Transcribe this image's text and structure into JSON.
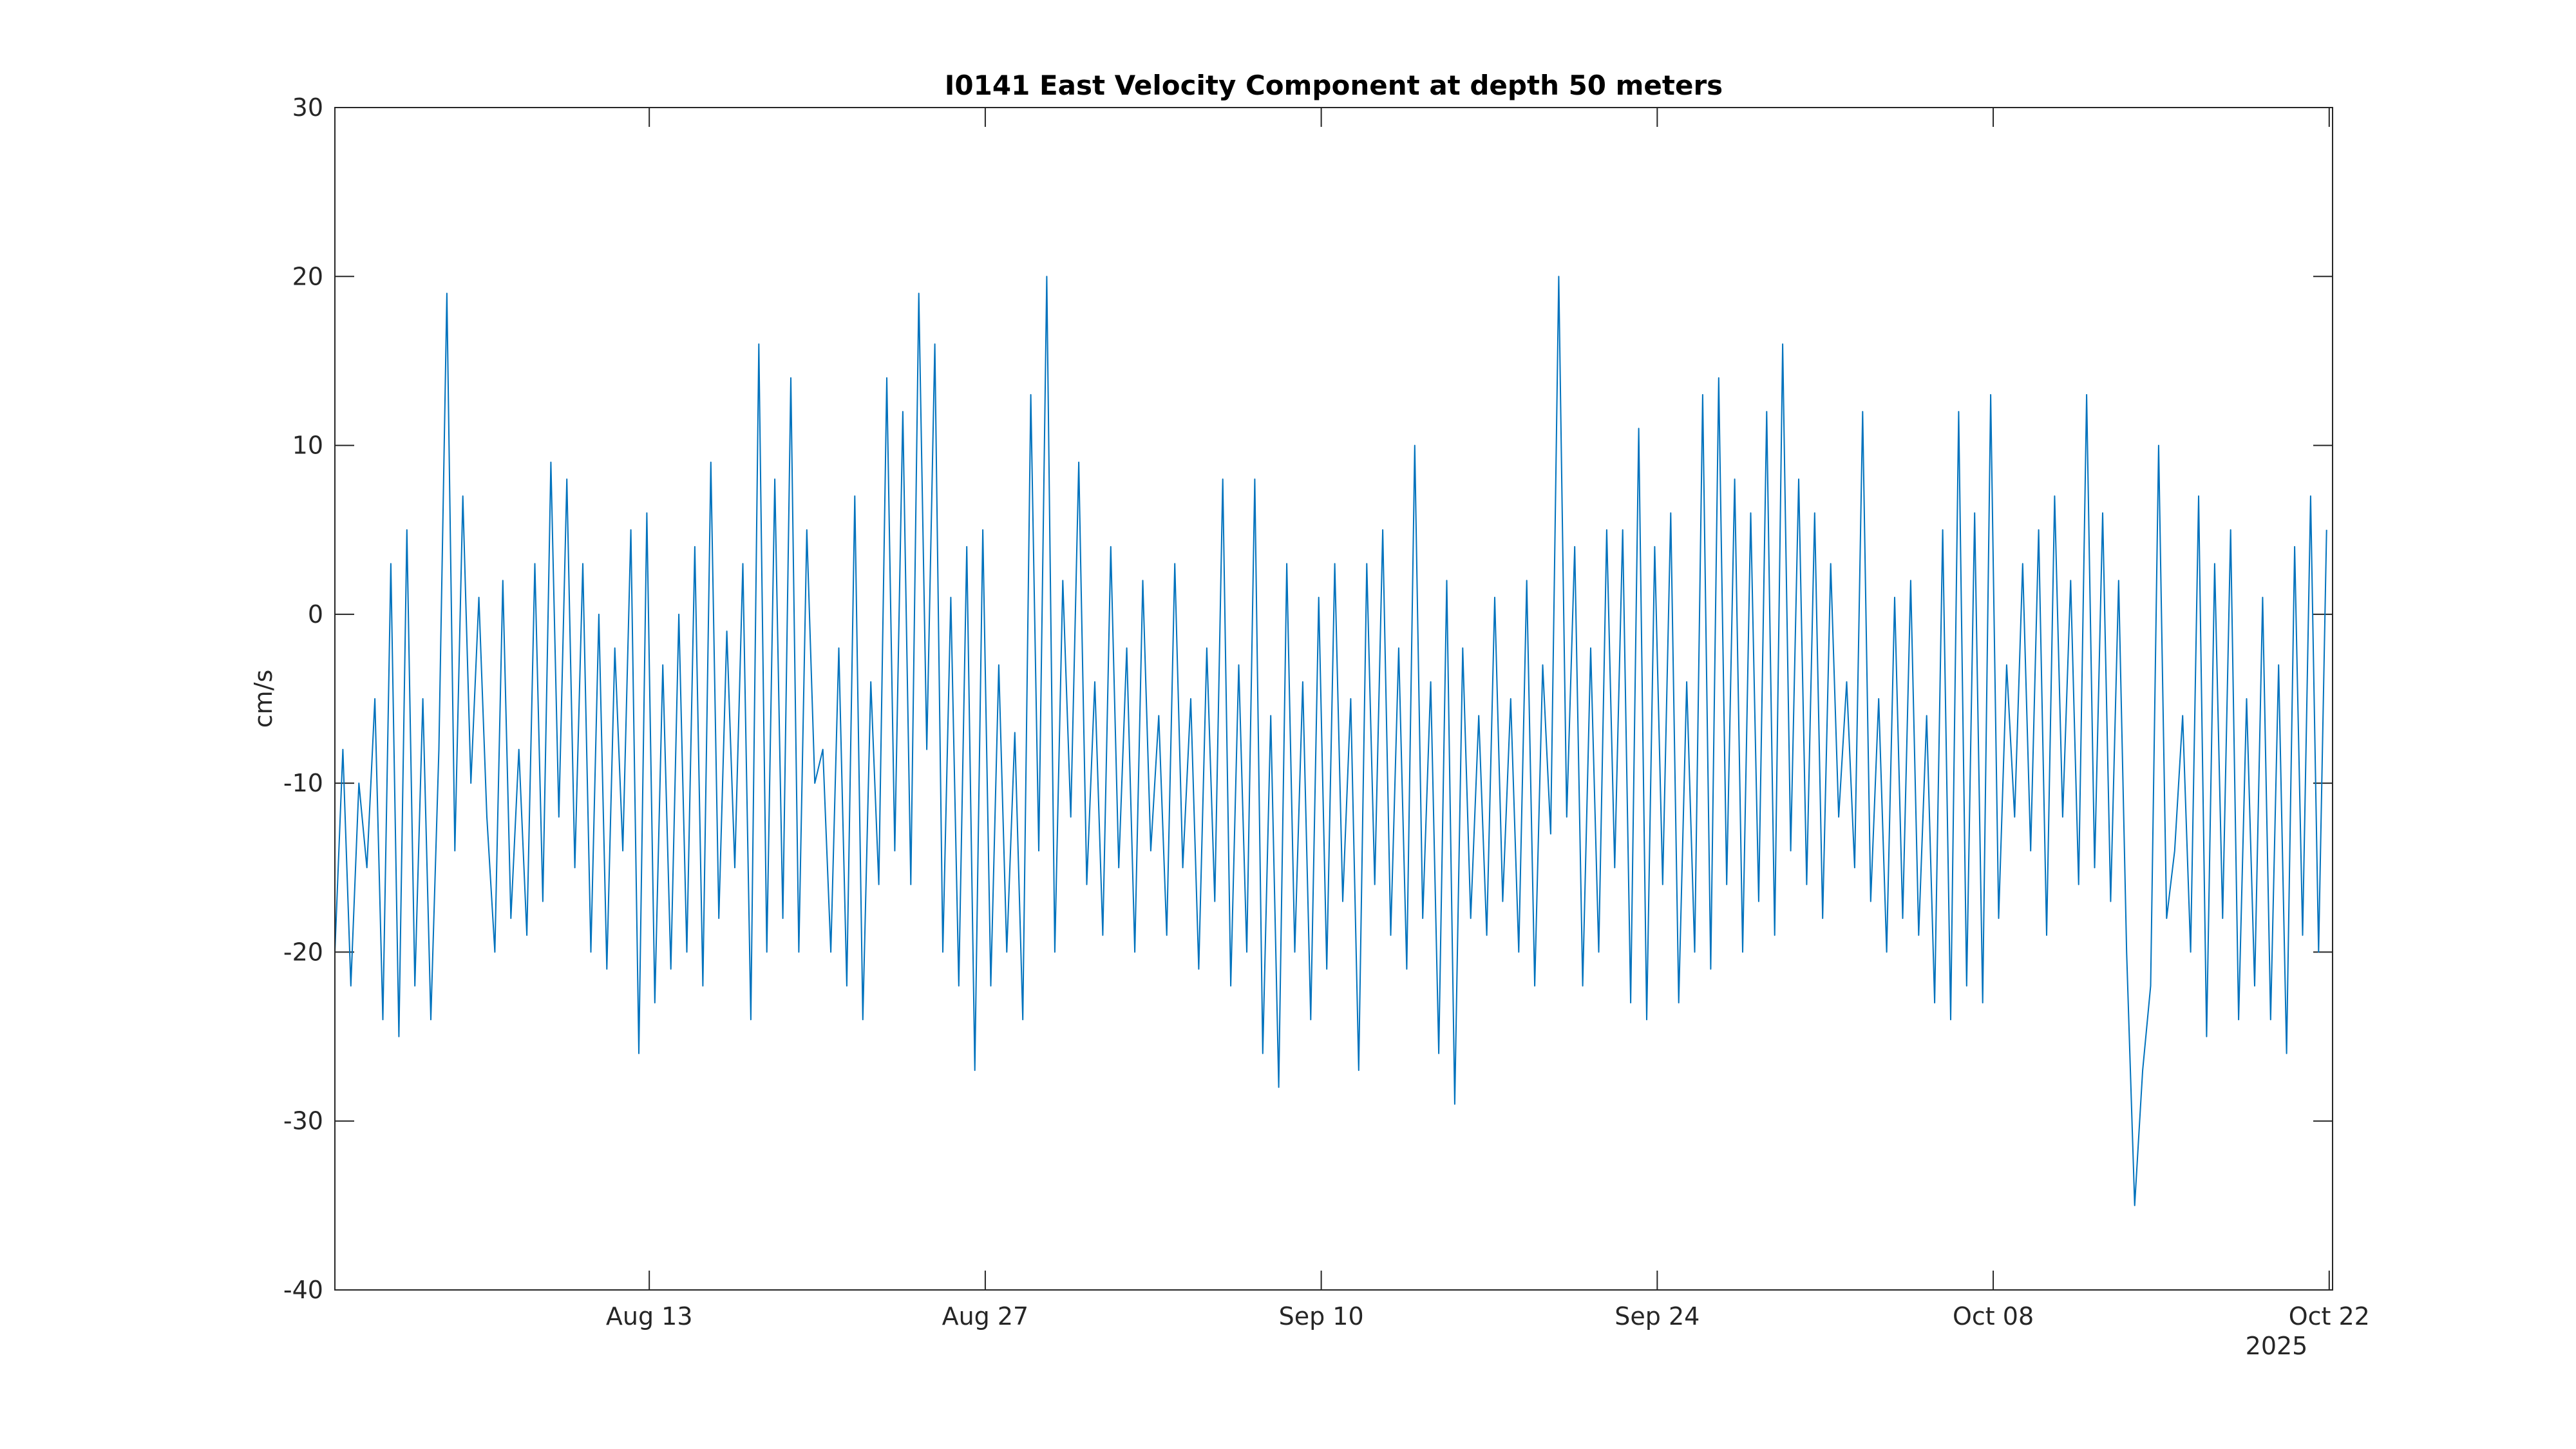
{
  "chart_data": {
    "type": "line",
    "title": "I0141 East Velocity Component at depth 50 meters",
    "xlabel": "",
    "ylabel": "cm/s",
    "x_units": "days from start of record",
    "xlim": [
      0,
      83.24
    ],
    "ylim": [
      -40,
      30
    ],
    "grid": false,
    "legend": "none",
    "line_color": "#0072BD",
    "axis_color": "#262626",
    "yticks": [
      -40,
      -30,
      -20,
      -10,
      0,
      10,
      20,
      30
    ],
    "ytick_labels": [
      "-40",
      "-30",
      "-20",
      "-10",
      "0",
      "10",
      "20",
      "30"
    ],
    "xticks": [
      13.1,
      27.1,
      41.1,
      55.1,
      69.1,
      83.1
    ],
    "xtick_labels": [
      "Aug 13",
      "Aug 27",
      "Sep 10",
      "Sep 24",
      "Oct 08",
      "Oct 22"
    ],
    "x_secondary_label": "2025",
    "series": [
      {
        "name": "East velocity",
        "x_step_days": 0.3333,
        "values": [
          -20,
          -8,
          -22,
          -10,
          -15,
          -5,
          -24,
          3,
          -25,
          5,
          -22,
          -5,
          -24,
          -8,
          19,
          -14,
          7,
          -10,
          1,
          -12,
          -20,
          2,
          -18,
          -8,
          -19,
          3,
          -17,
          9,
          -12,
          8,
          -15,
          3,
          -20,
          0,
          -21,
          -2,
          -14,
          5,
          -26,
          6,
          -23,
          -3,
          -21,
          0,
          -20,
          4,
          -22,
          9,
          -18,
          -1,
          -15,
          3,
          -24,
          16,
          -20,
          8,
          -18,
          14,
          -20,
          5,
          -10,
          -8,
          -20,
          -2,
          -22,
          7,
          -24,
          -4,
          -16,
          14,
          -14,
          12,
          -16,
          19,
          -8,
          16,
          -20,
          1,
          -22,
          4,
          -27,
          5,
          -22,
          -3,
          -20,
          -7,
          -24,
          13,
          -14,
          20,
          -20,
          2,
          -12,
          9,
          -16,
          -4,
          -19,
          4,
          -15,
          -2,
          -20,
          2,
          -14,
          -6,
          -19,
          3,
          -15,
          -5,
          -21,
          -2,
          -17,
          8,
          -22,
          -3,
          -20,
          8,
          -26,
          -6,
          -28,
          3,
          -20,
          -4,
          -24,
          1,
          -21,
          3,
          -17,
          -5,
          -27,
          3,
          -16,
          5,
          -19,
          -2,
          -21,
          10,
          -18,
          -4,
          -26,
          2,
          -29,
          -2,
          -18,
          -6,
          -19,
          1,
          -17,
          -5,
          -20,
          2,
          -22,
          -3,
          -13,
          20,
          -12,
          4,
          -22,
          -2,
          -20,
          5,
          -15,
          5,
          -23,
          11,
          -24,
          4,
          -16,
          6,
          -23,
          -4,
          -20,
          13,
          -21,
          14,
          -16,
          8,
          -20,
          6,
          -17,
          12,
          -19,
          16,
          -14,
          8,
          -16,
          6,
          -18,
          3,
          -12,
          -4,
          -15,
          12,
          -17,
          -5,
          -20,
          1,
          -18,
          2,
          -19,
          -6,
          -23,
          5,
          -24,
          12,
          -22,
          6,
          -23,
          13,
          -18,
          -3,
          -12,
          3,
          -14,
          5,
          -19,
          7,
          -12,
          2,
          -16,
          13,
          -15,
          6,
          -17,
          2,
          -20,
          -35,
          -27,
          -22,
          10,
          -18,
          -14,
          -6,
          -20,
          7,
          -25,
          3,
          -18,
          5,
          -24,
          -5,
          -22,
          1,
          -24,
          -3,
          -26,
          4,
          -19,
          7,
          -20,
          5
        ]
      }
    ]
  }
}
